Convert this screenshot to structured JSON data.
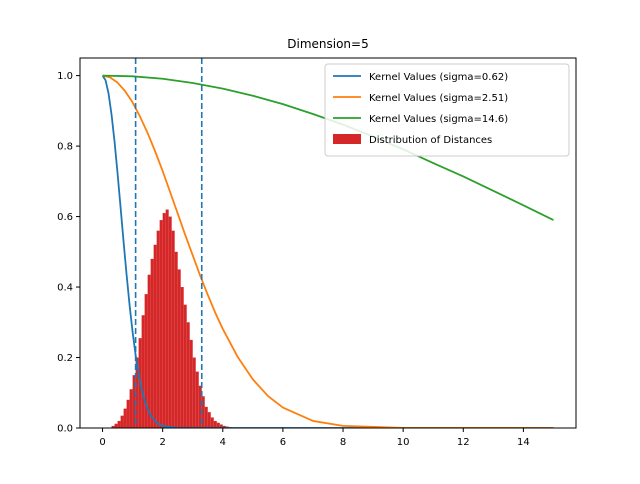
{
  "chart_data": {
    "type": "line",
    "title": "Dimension=5",
    "xlabel": "",
    "ylabel": "",
    "xlim": [
      -0.75,
      15.75
    ],
    "ylim": [
      0,
      1.05
    ],
    "x_ticks": [
      0,
      2,
      4,
      6,
      8,
      10,
      12,
      14
    ],
    "x_tick_labels": [
      "0",
      "2",
      "4",
      "6",
      "8",
      "10",
      "12",
      "14"
    ],
    "y_ticks": [
      0,
      0.2,
      0.4,
      0.6,
      0.8,
      1.0
    ],
    "y_tick_labels": [
      "0.0",
      "0.2",
      "0.4",
      "0.6",
      "0.8",
      "1.0"
    ],
    "grid": false,
    "legend_position": "top-right",
    "series": [
      {
        "name": "Kernel Values (sigma=0.62)",
        "color": "#1f77b4",
        "x": [
          0,
          0.1,
          0.2,
          0.3,
          0.4,
          0.5,
          0.6,
          0.7,
          0.8,
          0.9,
          1.0,
          1.1,
          1.2,
          1.3,
          1.4,
          1.5,
          1.6,
          1.8,
          2.0,
          2.5,
          3.0,
          4.0,
          6.0,
          10.0,
          15.0
        ],
        "y": [
          1.0,
          0.987,
          0.949,
          0.889,
          0.812,
          0.722,
          0.626,
          0.528,
          0.435,
          0.348,
          0.272,
          0.207,
          0.154,
          0.111,
          0.078,
          0.054,
          0.036,
          0.015,
          0.0055,
          0.0003,
          0.0,
          0.0,
          0.0,
          0.0,
          0.0
        ]
      },
      {
        "name": "Kernel Values (sigma=2.51)",
        "color": "#ff7f0e",
        "x": [
          0,
          0.25,
          0.5,
          0.75,
          1.0,
          1.25,
          1.5,
          1.75,
          2.0,
          2.25,
          2.5,
          2.75,
          3.0,
          3.25,
          3.5,
          3.75,
          4.0,
          4.5,
          5.0,
          5.5,
          6.0,
          7.0,
          8.0,
          10.0,
          15.0
        ],
        "y": [
          1.0,
          0.995,
          0.98,
          0.956,
          0.924,
          0.883,
          0.837,
          0.785,
          0.729,
          0.669,
          0.609,
          0.548,
          0.49,
          0.432,
          0.378,
          0.327,
          0.281,
          0.201,
          0.138,
          0.091,
          0.058,
          0.02,
          0.006,
          0.0004,
          0.0
        ]
      },
      {
        "name": "Kernel Values (sigma=14.6)",
        "color": "#2ca02c",
        "x": [
          0,
          1,
          2,
          3,
          4,
          5,
          6,
          7,
          8,
          9,
          10,
          11,
          12,
          13,
          14,
          15
        ],
        "y": [
          1.0,
          0.998,
          0.991,
          0.979,
          0.963,
          0.943,
          0.919,
          0.891,
          0.861,
          0.827,
          0.791,
          0.752,
          0.714,
          0.673,
          0.632,
          0.59
        ]
      }
    ],
    "vlines": [
      {
        "x": 1.1,
        "color": "#1f77b4",
        "style": "dashed"
      },
      {
        "x": 3.3,
        "color": "#1f77b4",
        "style": "dashed"
      }
    ],
    "histogram": {
      "name": "Distribution of Distances",
      "color": "#d62728",
      "bin_width": 0.1,
      "bins": [
        [
          0.3,
          0.006
        ],
        [
          0.4,
          0.012
        ],
        [
          0.5,
          0.02
        ],
        [
          0.6,
          0.035
        ],
        [
          0.7,
          0.055
        ],
        [
          0.8,
          0.08
        ],
        [
          0.9,
          0.11
        ],
        [
          1.0,
          0.15
        ],
        [
          1.1,
          0.2
        ],
        [
          1.2,
          0.255
        ],
        [
          1.3,
          0.32
        ],
        [
          1.4,
          0.38
        ],
        [
          1.5,
          0.435
        ],
        [
          1.6,
          0.48
        ],
        [
          1.7,
          0.52
        ],
        [
          1.8,
          0.56
        ],
        [
          1.9,
          0.59
        ],
        [
          2.0,
          0.61
        ],
        [
          2.1,
          0.62
        ],
        [
          2.2,
          0.6
        ],
        [
          2.3,
          0.56
        ],
        [
          2.4,
          0.5
        ],
        [
          2.5,
          0.45
        ],
        [
          2.6,
          0.4
        ],
        [
          2.7,
          0.35
        ],
        [
          2.8,
          0.3
        ],
        [
          2.9,
          0.25
        ],
        [
          3.0,
          0.2
        ],
        [
          3.1,
          0.16
        ],
        [
          3.2,
          0.12
        ],
        [
          3.3,
          0.09
        ],
        [
          3.4,
          0.06
        ],
        [
          3.5,
          0.045
        ],
        [
          3.6,
          0.03
        ],
        [
          3.7,
          0.02
        ],
        [
          3.8,
          0.015
        ],
        [
          3.9,
          0.01
        ],
        [
          4.0,
          0.006
        ],
        [
          4.1,
          0.004
        ],
        [
          4.2,
          0.002
        ]
      ]
    },
    "legend": [
      {
        "label": "Kernel Values (sigma=0.62)",
        "kind": "line",
        "color": "#1f77b4"
      },
      {
        "label": "Kernel Values (sigma=2.51)",
        "kind": "line",
        "color": "#ff7f0e"
      },
      {
        "label": "Kernel Values (sigma=14.6)",
        "kind": "line",
        "color": "#2ca02c"
      },
      {
        "label": "Distribution of Distances",
        "kind": "patch",
        "color": "#d62728"
      }
    ]
  }
}
